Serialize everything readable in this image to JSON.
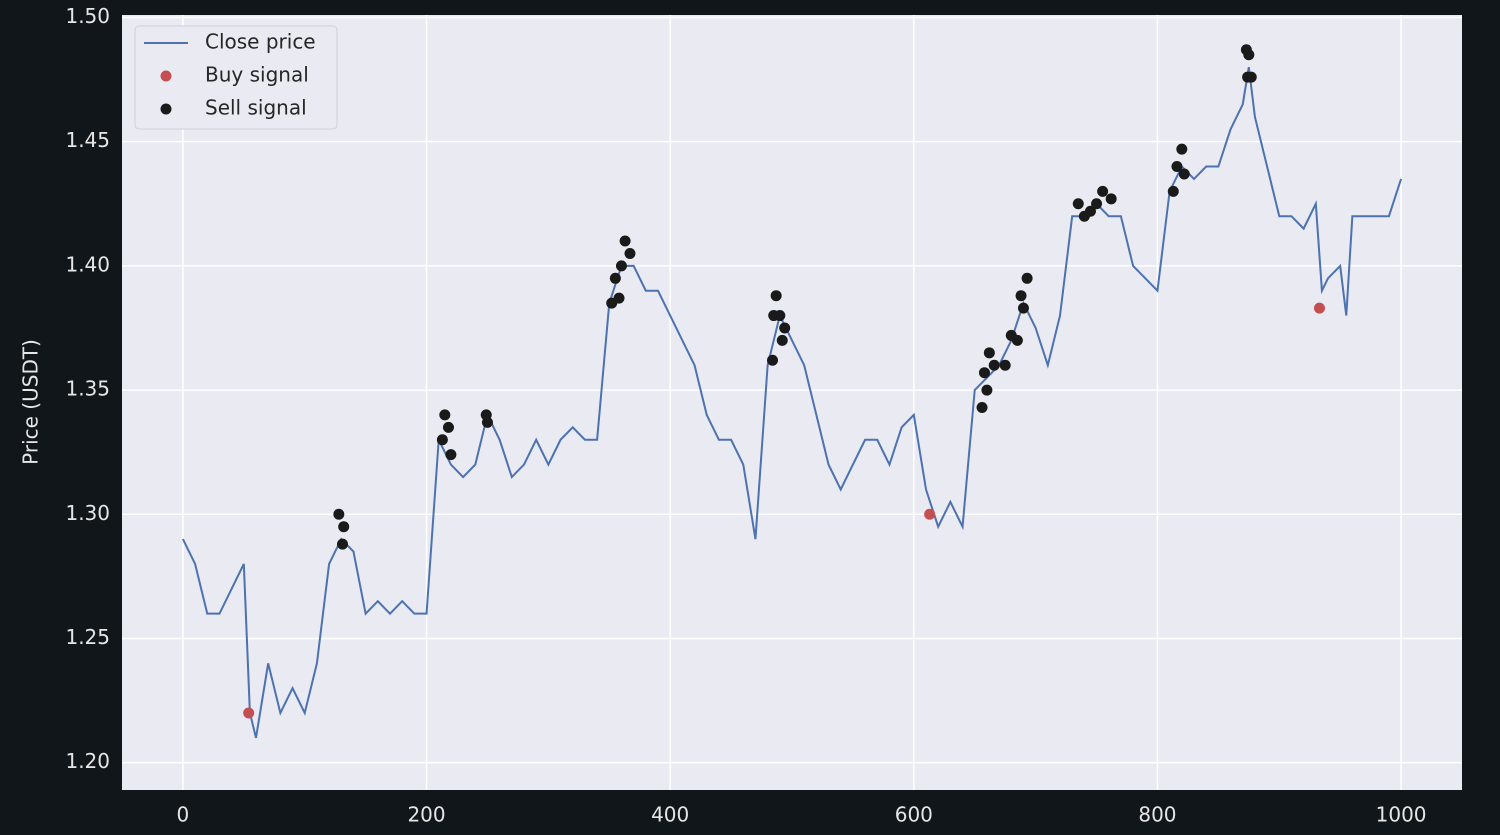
{
  "chart_data": {
    "type": "line",
    "ylabel": "Price (USDT)",
    "xlim": [
      -50,
      1050
    ],
    "ylim": [
      1.189,
      1.501
    ],
    "xticks": [
      0,
      200,
      400,
      600,
      800,
      1000
    ],
    "yticks": [
      {
        "value": 1.2,
        "label": "1.20"
      },
      1.25,
      {
        "value": 1.3,
        "label": "1.30"
      },
      1.35,
      {
        "value": 1.4,
        "label": "1.40"
      },
      1.45,
      {
        "value": 1.5,
        "label": "1.50"
      }
    ],
    "grid": true,
    "legend": "upper left",
    "series": [
      {
        "name": "Close price",
        "type": "line",
        "color": "#4c72b0",
        "x": [
          0,
          10,
          20,
          30,
          40,
          50,
          55,
          60,
          70,
          80,
          90,
          100,
          110,
          120,
          130,
          140,
          150,
          160,
          170,
          180,
          190,
          200,
          210,
          220,
          230,
          240,
          250,
          260,
          270,
          280,
          290,
          300,
          310,
          320,
          330,
          340,
          350,
          360,
          370,
          380,
          390,
          400,
          410,
          420,
          430,
          440,
          450,
          460,
          470,
          480,
          490,
          500,
          510,
          520,
          530,
          540,
          550,
          560,
          570,
          580,
          590,
          600,
          610,
          620,
          630,
          640,
          650,
          660,
          670,
          680,
          690,
          700,
          710,
          720,
          730,
          740,
          750,
          760,
          770,
          780,
          790,
          800,
          810,
          820,
          830,
          840,
          850,
          860,
          870,
          875,
          880,
          890,
          900,
          910,
          920,
          930,
          935,
          940,
          950,
          955,
          960,
          970,
          980,
          990,
          1000
        ],
        "values": [
          1.29,
          1.28,
          1.26,
          1.26,
          1.27,
          1.28,
          1.22,
          1.21,
          1.24,
          1.22,
          1.23,
          1.22,
          1.24,
          1.28,
          1.29,
          1.285,
          1.26,
          1.265,
          1.26,
          1.265,
          1.26,
          1.26,
          1.33,
          1.32,
          1.315,
          1.32,
          1.34,
          1.33,
          1.315,
          1.32,
          1.33,
          1.32,
          1.33,
          1.335,
          1.33,
          1.33,
          1.385,
          1.4,
          1.4,
          1.39,
          1.39,
          1.38,
          1.37,
          1.36,
          1.34,
          1.33,
          1.33,
          1.32,
          1.29,
          1.36,
          1.38,
          1.37,
          1.36,
          1.34,
          1.32,
          1.31,
          1.32,
          1.33,
          1.33,
          1.32,
          1.335,
          1.34,
          1.31,
          1.295,
          1.305,
          1.295,
          1.35,
          1.355,
          1.36,
          1.37,
          1.385,
          1.375,
          1.36,
          1.38,
          1.42,
          1.42,
          1.425,
          1.42,
          1.42,
          1.4,
          1.395,
          1.39,
          1.43,
          1.44,
          1.435,
          1.44,
          1.44,
          1.455,
          1.465,
          1.48,
          1.46,
          1.44,
          1.42,
          1.42,
          1.415,
          1.425,
          1.39,
          1.395,
          1.4,
          1.38,
          1.42,
          1.42,
          1.42,
          1.42,
          1.435
        ]
      },
      {
        "name": "Buy signal",
        "type": "scatter",
        "color": "#c44e52",
        "x": [
          54,
          613,
          933
        ],
        "values": [
          1.22,
          1.3,
          1.383
        ]
      },
      {
        "name": "Sell signal",
        "type": "scatter",
        "color": "#1a1a1a",
        "x": [
          128,
          132,
          131,
          213,
          215,
          218,
          220,
          249,
          250,
          352,
          355,
          360,
          363,
          367,
          358,
          484,
          485,
          487,
          490,
          492,
          494,
          656,
          658,
          660,
          662,
          666,
          675,
          680,
          685,
          688,
          690,
          693,
          735,
          740,
          745,
          750,
          755,
          762,
          813,
          816,
          820,
          822,
          873,
          875,
          874,
          877
        ],
        "values": [
          1.3,
          1.295,
          1.288,
          1.33,
          1.34,
          1.335,
          1.324,
          1.34,
          1.337,
          1.385,
          1.395,
          1.4,
          1.41,
          1.405,
          1.387,
          1.362,
          1.38,
          1.388,
          1.38,
          1.37,
          1.375,
          1.343,
          1.357,
          1.35,
          1.365,
          1.36,
          1.36,
          1.372,
          1.37,
          1.388,
          1.383,
          1.395,
          1.425,
          1.42,
          1.422,
          1.425,
          1.43,
          1.427,
          1.43,
          1.44,
          1.447,
          1.437,
          1.487,
          1.485,
          1.476,
          1.476
        ]
      }
    ]
  }
}
